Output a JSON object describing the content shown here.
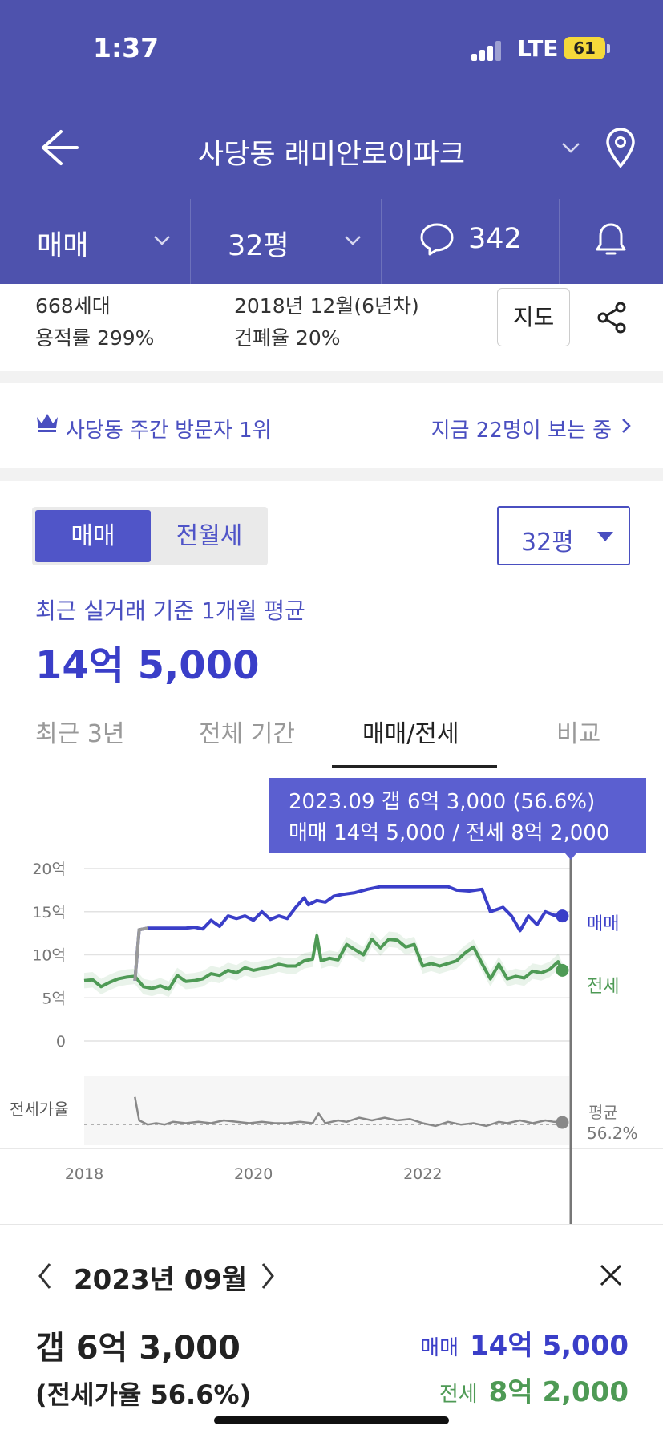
{
  "status_bar": {
    "time": "1:37",
    "network": "LTE",
    "battery": "61"
  },
  "nav": {
    "title": "사당동 래미안로이파크"
  },
  "filters": {
    "trade": "매매",
    "size": "32평",
    "comments": "342"
  },
  "complex_info": {
    "households": "668세대",
    "far": "용적률 299%",
    "built": "2018년 12월(6년차)",
    "bcr": "건폐율 20%",
    "map_button": "지도"
  },
  "visitor": {
    "rank": "사당동 주간 방문자 1위",
    "viewers": "지금 22명이 보는 중"
  },
  "segment": {
    "sale": "매매",
    "rent": "전월세"
  },
  "size_select": {
    "value": "32평"
  },
  "summary": {
    "label": "최근 실거래 기준 1개월 평균",
    "value": "14억 5,000"
  },
  "period_tabs": [
    {
      "label": "최근 3년",
      "active": false
    },
    {
      "label": "전체 기간",
      "active": false
    },
    {
      "label": "매매/전세",
      "active": true
    },
    {
      "label": "비교",
      "active": false
    }
  ],
  "tooltip": {
    "line1": "2023.09  갭 6억 3,000 (56.6%)",
    "line2": "매매 14억 5,000 / 전세 8억 2,000"
  },
  "detail": {
    "month": "2023년 09월",
    "gap": "갭 6억 3,000",
    "ratio": "(전세가율 56.6%)",
    "sale_label": "매매",
    "sale_value": "14억 5,000",
    "jeonse_label": "전세",
    "jeonse_value": "8억 2,000"
  },
  "colors": {
    "brand": "#4e52ad",
    "accent": "#4a4fc0",
    "sale": "#3a3ec8",
    "jeonse": "#4e9a55"
  },
  "chart_data": {
    "type": "line",
    "y_ticks": [
      "20억",
      "15억",
      "10억",
      "5억",
      "0"
    ],
    "ylim": [
      0,
      20
    ],
    "x_ticks": [
      "2018",
      "2020",
      "2022"
    ],
    "xlim": [
      2018.0,
      2023.75
    ],
    "ratio_label": "전세가율",
    "avg_label": "평균",
    "avg_value": "56.2%",
    "ratio_avg": 56.2,
    "series": [
      {
        "name": "매매",
        "color": "#3a3ec8",
        "points": [
          [
            2018.6,
            7.0
          ],
          [
            2018.65,
            12.9
          ],
          [
            2018.75,
            13.1
          ],
          [
            2018.9,
            13.1
          ],
          [
            2019.05,
            13.1
          ],
          [
            2019.2,
            13.1
          ],
          [
            2019.3,
            13.2
          ],
          [
            2019.4,
            13.0
          ],
          [
            2019.5,
            14.0
          ],
          [
            2019.6,
            13.3
          ],
          [
            2019.7,
            14.5
          ],
          [
            2019.8,
            14.2
          ],
          [
            2019.9,
            14.5
          ],
          [
            2020.0,
            14.0
          ],
          [
            2020.1,
            15.0
          ],
          [
            2020.2,
            14.1
          ],
          [
            2020.3,
            14.5
          ],
          [
            2020.4,
            14.2
          ],
          [
            2020.5,
            15.5
          ],
          [
            2020.6,
            16.6
          ],
          [
            2020.65,
            15.8
          ],
          [
            2020.75,
            16.3
          ],
          [
            2020.85,
            16.1
          ],
          [
            2020.95,
            16.8
          ],
          [
            2021.05,
            17.0
          ],
          [
            2021.2,
            17.2
          ],
          [
            2021.35,
            17.6
          ],
          [
            2021.5,
            17.9
          ],
          [
            2021.7,
            17.9
          ],
          [
            2021.9,
            17.9
          ],
          [
            2022.1,
            17.9
          ],
          [
            2022.3,
            17.9
          ],
          [
            2022.4,
            17.5
          ],
          [
            2022.55,
            17.4
          ],
          [
            2022.7,
            17.6
          ],
          [
            2022.8,
            15.0
          ],
          [
            2022.95,
            15.5
          ],
          [
            2023.05,
            14.5
          ],
          [
            2023.15,
            12.8
          ],
          [
            2023.25,
            14.5
          ],
          [
            2023.35,
            13.5
          ],
          [
            2023.45,
            15.0
          ],
          [
            2023.55,
            14.6
          ],
          [
            2023.65,
            14.5
          ]
        ]
      },
      {
        "name": "전세",
        "color": "#4e9a55",
        "points": [
          [
            2018.0,
            7.0
          ],
          [
            2018.1,
            7.1
          ],
          [
            2018.2,
            6.3
          ],
          [
            2018.3,
            6.8
          ],
          [
            2018.4,
            7.2
          ],
          [
            2018.5,
            7.4
          ],
          [
            2018.6,
            7.5
          ],
          [
            2018.7,
            6.3
          ],
          [
            2018.8,
            6.1
          ],
          [
            2018.9,
            6.4
          ],
          [
            2019.0,
            6.0
          ],
          [
            2019.1,
            7.6
          ],
          [
            2019.2,
            6.9
          ],
          [
            2019.3,
            7.0
          ],
          [
            2019.4,
            7.2
          ],
          [
            2019.5,
            7.8
          ],
          [
            2019.6,
            7.6
          ],
          [
            2019.7,
            8.2
          ],
          [
            2019.8,
            7.9
          ],
          [
            2019.9,
            8.5
          ],
          [
            2020.0,
            8.2
          ],
          [
            2020.1,
            8.4
          ],
          [
            2020.2,
            8.6
          ],
          [
            2020.3,
            8.9
          ],
          [
            2020.4,
            8.7
          ],
          [
            2020.5,
            8.7
          ],
          [
            2020.6,
            9.3
          ],
          [
            2020.7,
            9.5
          ],
          [
            2020.75,
            12.2
          ],
          [
            2020.8,
            9.3
          ],
          [
            2020.9,
            9.6
          ],
          [
            2021.0,
            9.4
          ],
          [
            2021.1,
            11.2
          ],
          [
            2021.2,
            10.6
          ],
          [
            2021.3,
            10.0
          ],
          [
            2021.4,
            11.8
          ],
          [
            2021.5,
            10.8
          ],
          [
            2021.6,
            11.8
          ],
          [
            2021.7,
            11.7
          ],
          [
            2021.8,
            10.9
          ],
          [
            2021.9,
            11.2
          ],
          [
            2022.0,
            8.7
          ],
          [
            2022.1,
            9.0
          ],
          [
            2022.2,
            8.7
          ],
          [
            2022.3,
            9.0
          ],
          [
            2022.4,
            9.3
          ],
          [
            2022.5,
            10.2
          ],
          [
            2022.6,
            10.9
          ],
          [
            2022.7,
            9.0
          ],
          [
            2022.8,
            7.2
          ],
          [
            2022.9,
            8.9
          ],
          [
            2023.0,
            7.2
          ],
          [
            2023.1,
            7.5
          ],
          [
            2023.2,
            7.3
          ],
          [
            2023.3,
            8.1
          ],
          [
            2023.4,
            7.9
          ],
          [
            2023.5,
            8.3
          ],
          [
            2023.6,
            9.2
          ],
          [
            2023.65,
            8.2
          ]
        ]
      },
      {
        "name": "전세가율",
        "color": "#888888",
        "points": [
          [
            2018.6,
            75
          ],
          [
            2018.65,
            58
          ],
          [
            2018.75,
            55
          ],
          [
            2018.85,
            56
          ],
          [
            2018.95,
            55
          ],
          [
            2019.05,
            57
          ],
          [
            2019.2,
            56
          ],
          [
            2019.35,
            57
          ],
          [
            2019.5,
            56
          ],
          [
            2019.65,
            58
          ],
          [
            2019.8,
            57
          ],
          [
            2019.95,
            56
          ],
          [
            2020.1,
            57
          ],
          [
            2020.25,
            56
          ],
          [
            2020.4,
            56
          ],
          [
            2020.55,
            57
          ],
          [
            2020.7,
            56
          ],
          [
            2020.77,
            63
          ],
          [
            2020.85,
            56
          ],
          [
            2021.0,
            58
          ],
          [
            2021.1,
            57
          ],
          [
            2021.25,
            60
          ],
          [
            2021.4,
            58
          ],
          [
            2021.55,
            60
          ],
          [
            2021.7,
            58
          ],
          [
            2021.85,
            59
          ],
          [
            2022.0,
            56
          ],
          [
            2022.15,
            54
          ],
          [
            2022.3,
            57
          ],
          [
            2022.45,
            55
          ],
          [
            2022.6,
            56
          ],
          [
            2022.75,
            54
          ],
          [
            2022.9,
            57
          ],
          [
            2023.0,
            56
          ],
          [
            2023.15,
            58
          ],
          [
            2023.3,
            56
          ],
          [
            2023.45,
            58
          ],
          [
            2023.55,
            57
          ],
          [
            2023.65,
            56.6
          ]
        ]
      }
    ],
    "selected_x": 2023.65
  }
}
